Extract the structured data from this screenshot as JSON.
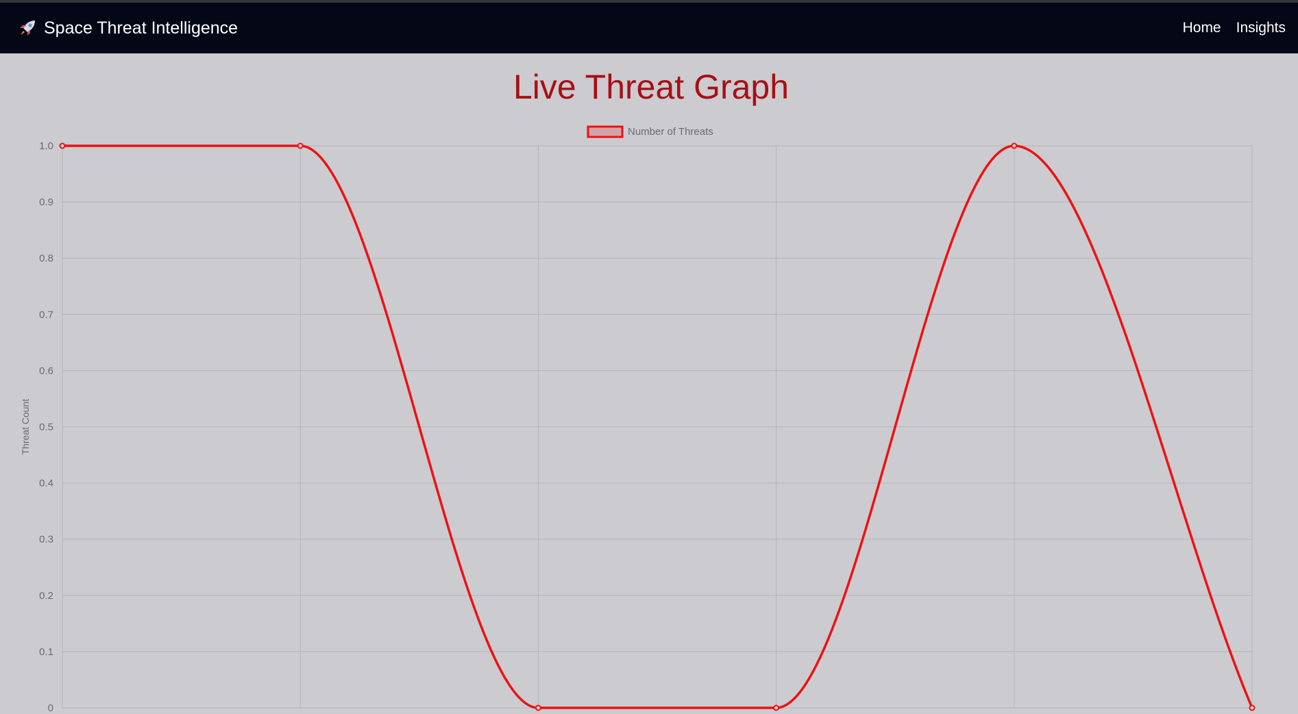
{
  "navbar": {
    "brand_icon": "rocket-icon",
    "brand": "Space Threat Intelligence",
    "links": [
      {
        "label": "Home"
      },
      {
        "label": "Insights"
      }
    ],
    "background": "#040816"
  },
  "page": {
    "title": "Live Threat Graph"
  },
  "chart_data": {
    "type": "line",
    "title": "Live Threat Graph",
    "xlabel": "",
    "ylabel": "Threat Count",
    "categories": [
      "",
      "",
      "",
      "",
      "",
      ""
    ],
    "series": [
      {
        "name": "Number of Threats",
        "values": [
          1,
          1,
          0,
          0,
          1,
          0
        ],
        "color": "#ee1111",
        "legend_fill": "#d4a3a8"
      }
    ],
    "ylim": [
      0,
      1
    ],
    "yticks": [
      "0",
      "0.1",
      "0.2",
      "0.3",
      "0.4",
      "0.5",
      "0.6",
      "0.7",
      "0.8",
      "0.9",
      "1.0"
    ],
    "ytick_values": [
      0,
      0.1,
      0.2,
      0.3,
      0.4,
      0.5,
      0.6,
      0.7,
      0.8,
      0.9,
      1.0
    ],
    "grid": true,
    "legend_position": "top-center",
    "curve": "smooth"
  }
}
